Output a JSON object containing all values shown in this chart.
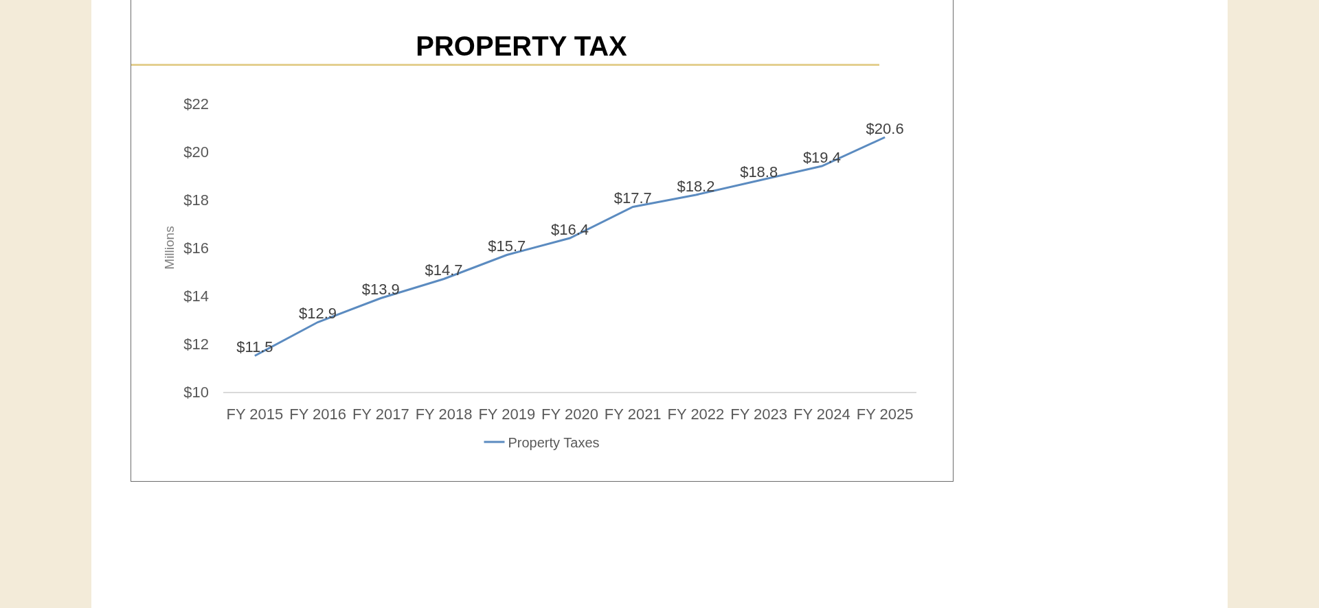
{
  "chart_data": {
    "type": "line",
    "title": "PROPERTY TAX",
    "ylabel": "Millions",
    "categories": [
      "FY 2015",
      "FY 2016",
      "FY 2017",
      "FY 2018",
      "FY 2019",
      "FY 2020",
      "FY 2021",
      "FY 2022",
      "FY 2023",
      "FY 2024",
      "FY 2025"
    ],
    "series": [
      {
        "name": "Property Taxes",
        "color": "#5b8bc0",
        "values": [
          11.5,
          12.9,
          13.9,
          14.7,
          15.7,
          16.4,
          17.7,
          18.2,
          18.8,
          19.4,
          20.6
        ],
        "value_labels": [
          "$11.5",
          "$12.9",
          "$13.9",
          "$14.7",
          "$15.7",
          "$16.4",
          "$17.7",
          "$18.2",
          "$18.8",
          "$19.4",
          "$20.6"
        ]
      }
    ],
    "ylim": [
      10,
      22
    ],
    "yticks": [
      {
        "value": 10,
        "label": "$10"
      },
      {
        "value": 12,
        "label": "$12"
      },
      {
        "value": 14,
        "label": "$14"
      },
      {
        "value": 16,
        "label": "$16"
      },
      {
        "value": 18,
        "label": "$18"
      },
      {
        "value": 20,
        "label": "$20"
      },
      {
        "value": 22,
        "label": "$22"
      }
    ],
    "legend": "bottom",
    "line_style": "solid"
  }
}
